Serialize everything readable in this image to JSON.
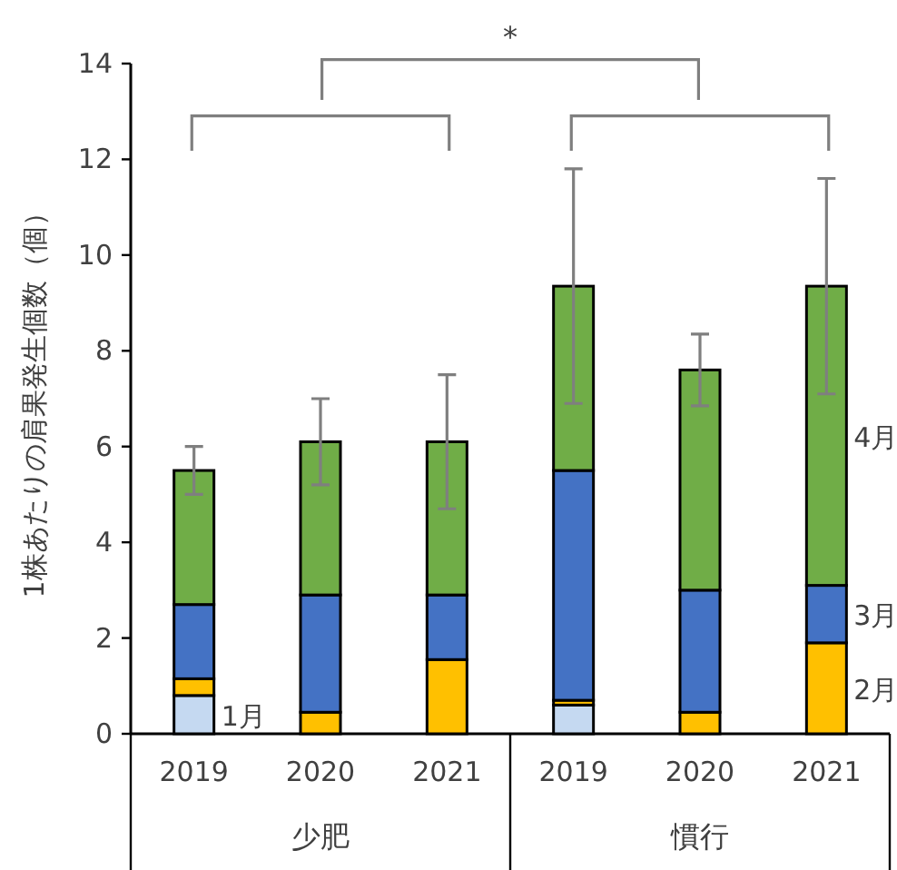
{
  "chart_data": {
    "type": "bar",
    "stacked": true,
    "ylabel": "1株あたりの肩果発生個数（個）",
    "categories": [
      "2019",
      "2020",
      "2021",
      "2019",
      "2020",
      "2021"
    ],
    "series": [
      {
        "name": "1月",
        "color": "#c5d9f1",
        "values": [
          0.8,
          0,
          0,
          0.6,
          0,
          0
        ]
      },
      {
        "name": "2月",
        "color": "#ffc000",
        "values": [
          0.35,
          0.45,
          1.55,
          0.1,
          0.45,
          1.9
        ]
      },
      {
        "name": "3月",
        "color": "#4472c4",
        "values": [
          1.55,
          2.45,
          1.35,
          4.8,
          2.55,
          1.2
        ]
      },
      {
        "name": "4月",
        "color": "#70ad47",
        "values": [
          2.8,
          3.2,
          3.2,
          3.85,
          4.6,
          6.25
        ],
        "errors": [
          0.5,
          0.9,
          1.4,
          2.45,
          0.75,
          2.25
        ]
      }
    ],
    "ylim": [
      0,
      14
    ],
    "yticks": [
      0,
      2,
      4,
      6,
      8,
      10,
      12,
      14
    ],
    "legend": false,
    "grid": false,
    "annotations": [
      "*",
      "少肥",
      "慣行"
    ]
  }
}
